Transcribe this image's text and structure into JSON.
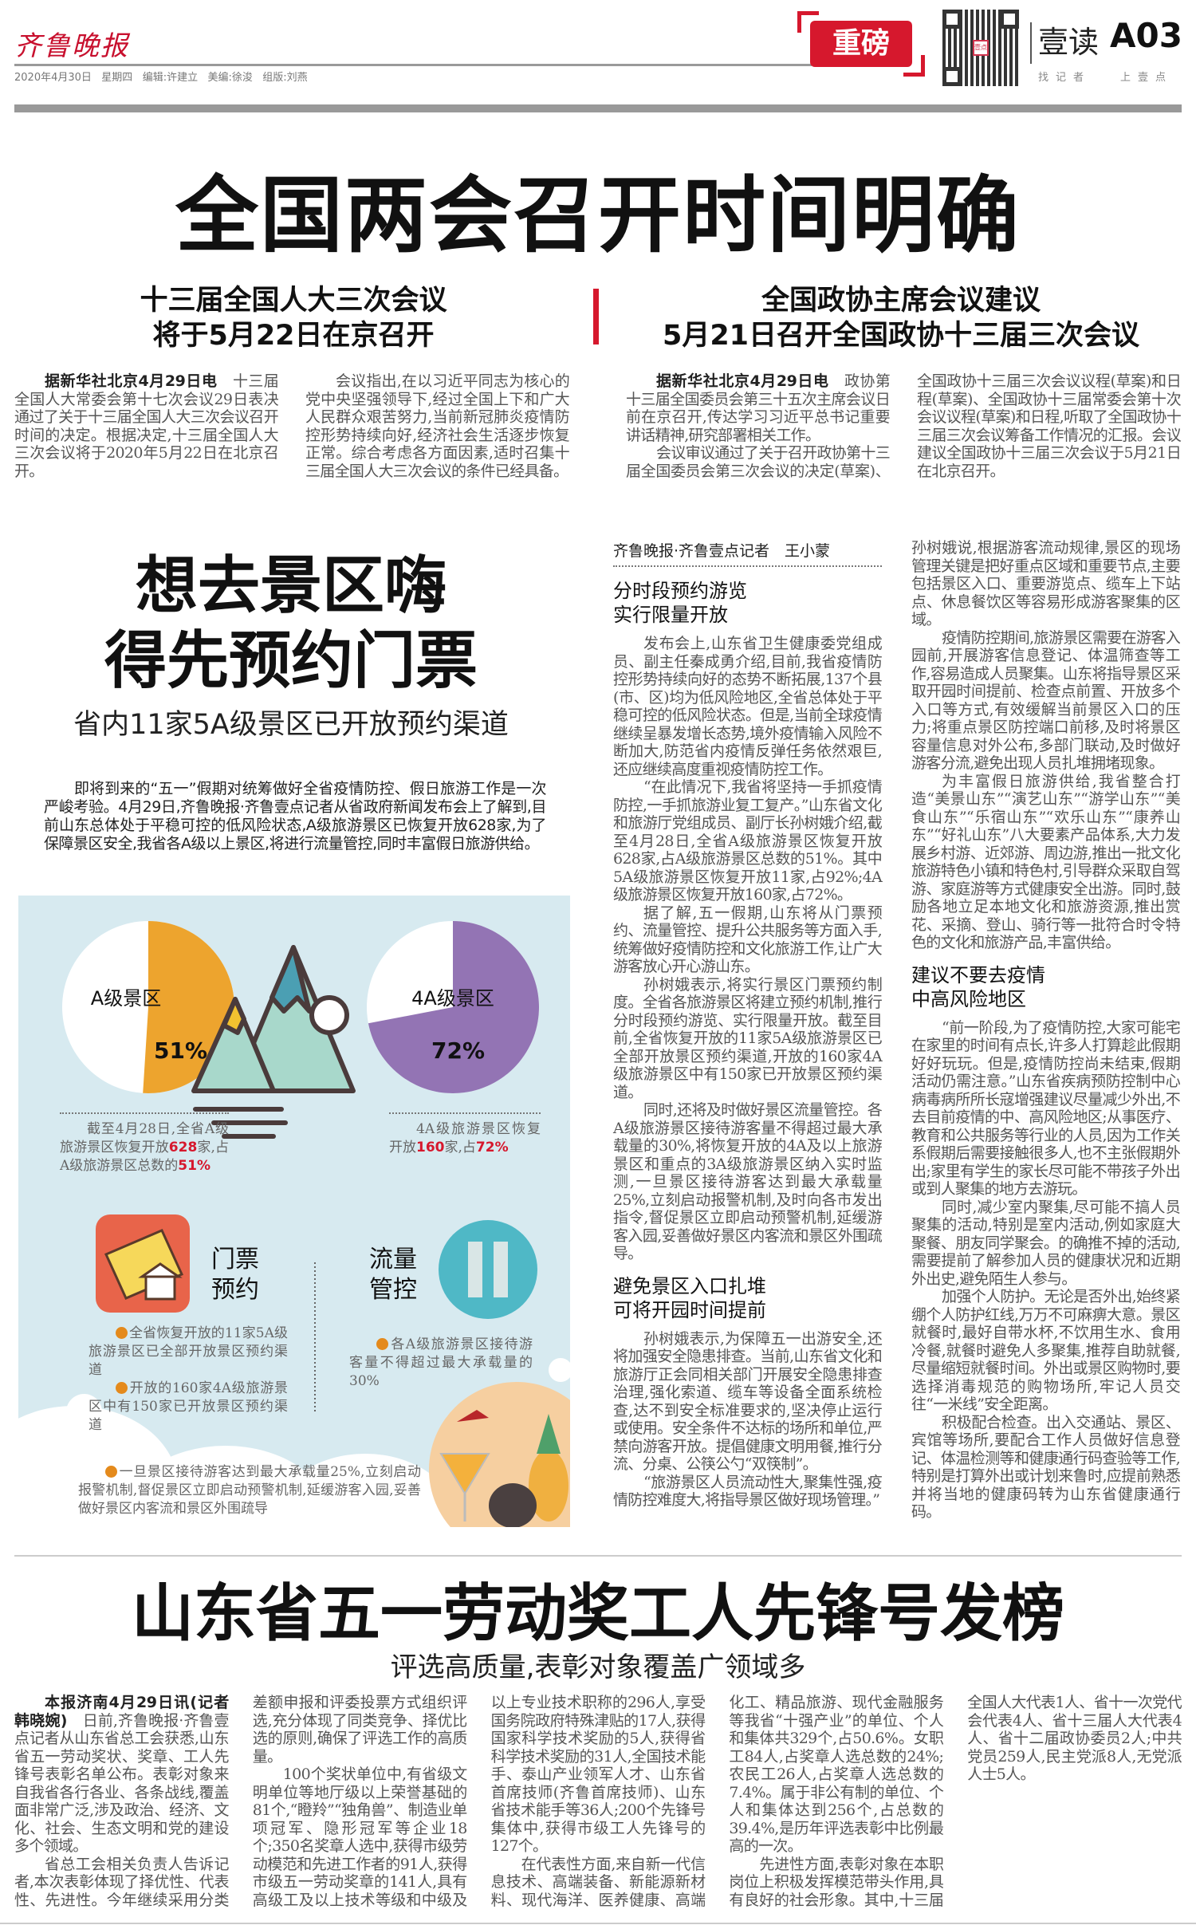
{
  "masthead": {
    "logo": "齐鲁晚报",
    "dateline": "2020年4月30日   星期四   编辑:许建立   美编:徐浚   组版:刘燕",
    "section_badge": "重磅",
    "qr_label": "壹点",
    "channel": "壹读",
    "page": "A03",
    "left_slogan": "找记者",
    "right_slogan": "上壹点",
    "accent_color": "#d6182d"
  },
  "lead_story": {
    "headline": "全国两会召开时间明确",
    "left": {
      "subhead": [
        "十三届全国人大三次会议",
        "将于5月22日在京召开"
      ],
      "dateline": "据新华社北京4月29日电",
      "paragraphs": [
        "十三届全国人大常委会第十七次会议29日表决通过了关于十三届全国人大三次会议召开时间的决定。根据决定,十三届全国人大三次会议将于2020年5月22日在北京召开。",
        "会议指出,在以习近平同志为核心的党中央坚强领导下,经过全国上下和广大人民群众艰苦努力,当前新冠肺炎疫情防控形势持续向好,经济社会生活逐步恢复正常。综合考虑各方面因素,适时召集十三届全国人大三次会议的条件已经具备。"
      ]
    },
    "right": {
      "subhead": [
        "全国政协主席会议建议",
        "5月21日召开全国政协十三届三次会议"
      ],
      "dateline": "据新华社北京4月29日电",
      "paragraphs": [
        "政协第十三届全国委员会第三十五次主席会议日前在京召开,传达学习习近平总书记重要讲话精神,研究部署相关工作。",
        "会议审议通过了关于召开政协第十三届全国委员会第三次会议的决定(草案)、全国政协十三届三次会议议程(草案)和日程(草案)、全国政协十三届常委会第十次会议议程(草案)和日程,听取了全国政协十三届三次会议筹备工作情况的汇报。会议建议全国政协十三届三次会议于5月21日在北京召开。"
      ]
    }
  },
  "tourism_story": {
    "headline": [
      "想去景区嗨",
      "得先预约门票"
    ],
    "subtitle": "省内11家5A级景区已开放预约渠道",
    "lead": "即将到来的“五一”假期对统筹做好全省疫情防控、假日旅游工作是一次严峻考验。4月29日,齐鲁晚报·齐鲁壹点记者从省政府新闻发布会上了解到,目前山东总体处于平稳可控的低风险状态,A级旅游景区已恢复开放628家,为了保障景区安全,我省各A级以上景区,将进行流量管控,同时丰富假日旅游供给。",
    "byline": "齐鲁晚报·齐鲁壹点记者　王小蒙",
    "col1": {
      "h1": [
        "分时段预约游览",
        "实行限量开放"
      ],
      "p1": "发布会上,山东省卫生健康委党组成员、副主任秦成勇介绍,目前,我省疫情防控形势持续向好的态势不断拓展,137个县(市、区)均为低风险地区,全省总体处于平稳可控的低风险状态。但是,当前全球疫情继续呈暴发增长态势,境外疫情输入风险不断加大,防范省内疫情反弹任务依然艰巨,还应继续高度重视疫情防控工作。",
      "p2": "“在此情况下,我省将坚持一手抓疫情防控,一手抓旅游业复工复产。”山东省文化和旅游厅党组成员、副厅长孙树娥介绍,截至4月28日,全省A级旅游景区恢复开放628家,占A级旅游景区总数的51%。其中5A级旅游景区恢复开放11家,占92%;4A级旅游景区恢复开放160家,占72%。",
      "p3": "据了解,五一假期,山东将从门票预约、流量管控、提升公共服务等方面入手,统筹做好疫情防控和文化旅游工作,让广大游客放心开心游山东。",
      "p4": "孙树娥表示,将实行景区门票预约制度。全省各旅游景区将建立预约机制,推行分时段预约游览、实行限量开放。截至目前,全省恢复开放的11家5A级旅游景区已全部开放景区预约渠道,开放的160家4A级旅游景区中有150家已开放景区预约渠道。",
      "p5": "同时,还将及时做好景区流量管控。各A级旅游景区接待游客量不得超过最大承载量的30%,将恢复开放的4A及以上旅游景区和重点的3A级旅游景区纳入实时监测,一旦景区接待游客达到最大承载量25%,立刻启动报警机制,及时向各市发出指令,督促景区立即启动预警机制,延缓游客入园,妥善做好景区内客流和景区外围疏导。",
      "h2": [
        "避免景区入口扎堆",
        "可将开园时间提前"
      ],
      "p6": "孙树娥表示,为保障五一出游安全,还将加强安全隐患排查。当前,山东省文化和旅游厅正会同相关部门开展安全隐患排查治理,强化索道、缆车等设备全面系统检查,达不到安全标准要求的,坚决停止运行或使用。安全条件不达标的场所和单位,严禁向游客开放。提倡健康文明用餐,推行分流、分桌、公筷公勺“双筷制”。",
      "p7": "“旅游景区人员流动性大,聚集性强,疫情防控难度大,将指导景区做好现场管理。”"
    },
    "col2": {
      "p1": "孙树娥说,根据游客流动规律,景区的现场管理关键是把好重点区域和重要节点,主要包括景区入口、重要游览点、缆车上下站点、休息餐饮区等容易形成游客聚集的区域。",
      "p2": "疫情防控期间,旅游景区需要在游客入园前,开展游客信息登记、体温筛查等工作,容易造成人员聚集。山东将指导景区采取开园时间提前、检查点前置、开放多个入口等方式,有效缓解当前景区入口的压力;将重点景区防控端口前移,及时将景区容量信息对外公布,多部门联动,及时做好游客分流,避免出现人员扎堆拥堵现象。",
      "p3": "为丰富假日旅游供给,我省整合打造“美景山东”“演艺山东”“游学山东”“美食山东”“乐宿山东”“欢乐山东”“康养山东”“好礼山东”八大要素产品体系,大力发展乡村游、近郊游、周边游,推出一批文化旅游特色小镇和特色村,引导群众采取自驾游、家庭游等方式健康安全出游。同时,鼓励各地立足本地文化和旅游资源,推出赏花、采摘、登山、骑行等一批符合时令特色的文化和旅游产品,丰富供给。",
      "h3": [
        "建议不要去疫情",
        "中高风险地区"
      ],
      "p4": "“前一阶段,为了疫情防控,大家可能宅在家里的时间有点长,许多人打算趁此假期好好玩玩。但是,疫情防控尚未结束,假期活动仍需注意。”山东省疾病预防控制中心病毒病所所长寇增强建议尽量减少外出,不去目前疫情的中、高风险地区;从事医疗、教育和公共服务等行业的人员,因为工作关系假期后需要接触很多人,也不主张假期外出;家里有学生的家长尽可能不带孩子外出或到人聚集的地方去游玩。",
      "p5": "同时,减少室内聚集,尽可能不搞人员聚集的活动,特别是室内活动,例如家庭大聚餐、朋友同学聚会。的确推不掉的活动,需要提前了解参加人员的健康状况和近期外出史,避免陌生人参与。",
      "p6": "加强个人防护。无论是否外出,始终紧绷个人防护红线,万万不可麻痹大意。景区就餐时,最好自带水杯,不饮用生水、食用冷餐,就餐时避免人多聚集,推荐自助就餐,尽量缩短就餐时间。外出或景区购物时,要选择消毒规范的购物场所,牢记人员交往“一米线”安全距离。",
      "p7": "积极配合检查。出入交通站、景区、宾馆等场所,要配合工作人员做好信息登记、体温检测等和健康通行码查验等工作,特别是打算外出或计划来鲁时,应提前熟悉并将当地的健康码转为山东省健康通行码。"
    },
    "infographic": {
      "pie_a": {
        "label": "A级景区",
        "value_text": "51%",
        "value": 51,
        "color": "#eda42e"
      },
      "pie_4a": {
        "label": "4A级景区",
        "value_text": "72%",
        "value": 72,
        "color": "#9374b4"
      },
      "cap_a": {
        "t1": "截至4月28日,全省A级旅游景区恢复开放",
        "n1": "628",
        "t2": "家,占A级旅游景区总数的",
        "n2": "51%"
      },
      "cap_4a": {
        "t1": "4A级旅游景区恢复开放",
        "n1": "160",
        "t2": "家,占",
        "n2": "72%"
      },
      "ticket_title": [
        "门票",
        "预约"
      ],
      "flow_title": [
        "流量",
        "管控"
      ],
      "ticket_bullets": [
        "全省恢复开放的11家5A级旅游景区已全部开放景区预约渠道",
        "开放的160家4A级旅游景区中有150家已开放景区预约渠道"
      ],
      "flow_bullet": "各A级旅游景区接待游客量不得超过最大承载量的30%",
      "alarm_bullet": "一旦景区接待游客达到最大承载量25%,立刻启动报警机制,督促景区立即启动预警机制,延缓游客入园,妥善做好景区内客流和景区外围疏导",
      "bg_color": "#d7eaf0",
      "icons": [
        "mountain-icon",
        "ticket-icon",
        "pause-icon",
        "cocktail-icon",
        "pineapple-icon"
      ]
    }
  },
  "labor_story": {
    "headline": "山东省五一劳动奖工人先锋号发榜",
    "subtitle": "评选高质量,表彰对象覆盖广领域多",
    "dateline": "本报济南4月29日讯(记者韩晓婉)",
    "paragraphs": [
      "日前,齐鲁晚报·齐鲁壹点记者从山东省总工会获悉,山东省五一劳动奖状、奖章、工人先锋号表彰名单公布。表彰对象来自我省各行各业、各条战线,覆盖面非常广泛,涉及政治、经济、文化、社会、生态文明和党的建设多个领域。",
      "省总工会相关负责人告诉记者,本次表彰体现了择优性、代表性、先进性。今年继续采用分类差额申报和评委投票方式组织评选,充分体现了同类竞争、择优比选的原则,确保了评选工作的高质量。",
      "100个奖状单位中,有省级文明单位等地厅级以上荣誉基础的81个,“瞪羚”“独角兽”、制造业单项冠军、隐形冠军等企业18个;350名奖章人选中,获得市级劳动模范和先进工作者的91人,获得市级五一劳动奖章的141人,具有高级工及以上技术等级和中级及以上专业技术职称的296人,享受国务院政府特殊津贴的17人,获得国家科学技术奖励的5人,获得省科学技术奖励的31人,全国技术能手、泰山产业领军人才、山东省首席技师(齐鲁首席技师)、山东省技术能手等36人;200个先锋号集体中,获得市级工人先锋号的127个。",
      "在代表性方面,来自新一代信息技术、高端装备、新能源新材料、现代海洋、医养健康、高端化工、精品旅游、现代金融服务等我省“十强产业”的单位、个人和集体共329个,占50.6%。女职工84人,占奖章人选总数的24%;农民工26人,占奖章人选总数的7.4%。属于非公有制的单位、个人和集体达到256个,占总数的39.4%,是历年评选表彰中比例最高的一次。",
      "先进性方面,表彰对象在本职岗位上积极发挥模范带头作用,具有良好的社会形象。其中,十三届全国人大代表1人、省十一次党代会代表4人、省十三届人大代表4人、省十二届政协委员2人;中共党员259人,民主党派8人,无党派人士5人。"
    ]
  }
}
